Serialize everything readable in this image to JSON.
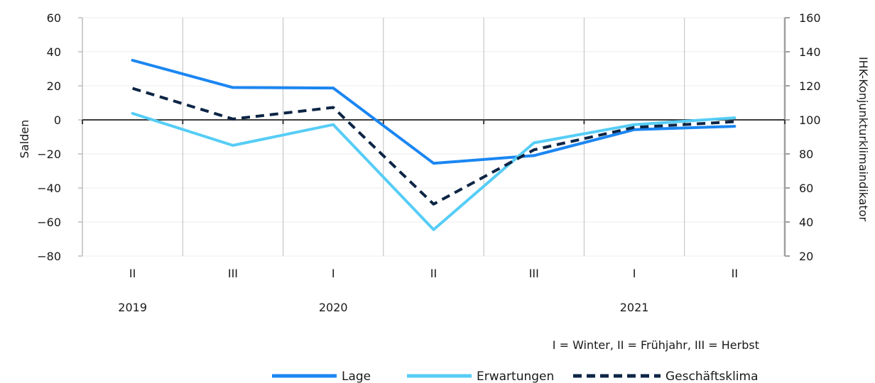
{
  "chart_data": {
    "type": "line",
    "categories": [
      "II",
      "III",
      "I",
      "II",
      "III",
      "I",
      "II"
    ],
    "year_labels": [
      {
        "label": "2019",
        "category_index": 0
      },
      {
        "label": "2020",
        "category_index": 2
      },
      {
        "label": "2021",
        "category_index": 5
      }
    ],
    "ylabel": "Salden",
    "y2label": "IHK-Konjunkturklimaindikator",
    "ylim": [
      -80,
      60
    ],
    "y_ticks": [
      -80,
      -60,
      -40,
      -20,
      0,
      20,
      40,
      60
    ],
    "y2lim": [
      20,
      160
    ],
    "y2_ticks": [
      20,
      40,
      60,
      80,
      100,
      120,
      140,
      160
    ],
    "note": "I = Winter, II = Frühjahr, III = Herbst",
    "legend_position": "bottom-right",
    "grid": "vertical",
    "series": [
      {
        "name": "Lage",
        "axis": "left",
        "color": "#1b86f2",
        "dash": "solid",
        "values": [
          35,
          19,
          18.7,
          -25.5,
          -21,
          -5.7,
          -3.8
        ]
      },
      {
        "name": "Erwartungen",
        "axis": "left",
        "color": "#56cdf6",
        "dash": "solid",
        "values": [
          3.8,
          -15,
          -2.8,
          -64.5,
          -13.5,
          -2.8,
          1.2
        ]
      },
      {
        "name": "Geschäftsklima",
        "axis": "right",
        "color": "#0d2545",
        "dash": "dashed",
        "values": [
          118.5,
          100.5,
          107.3,
          50.5,
          82.4,
          95.6,
          98.9
        ]
      }
    ]
  }
}
